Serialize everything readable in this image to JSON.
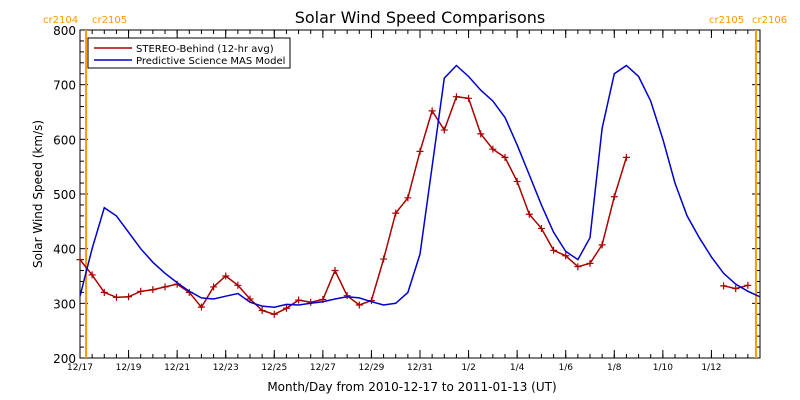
{
  "chart_data": {
    "type": "line",
    "title": "Solar Wind Speed Comparisons",
    "xlabel": "Month/Day from 2010-12-17 to 2011-01-13 (UT)",
    "ylabel": "Solar Wind Speed (km/s)",
    "xlim": [
      "2010-12-17",
      "2011-01-14"
    ],
    "ylim": [
      200,
      800
    ],
    "x_tick_labels": [
      "12/17",
      "12/19",
      "12/21",
      "12/23",
      "12/25",
      "12/27",
      "12/29",
      "12/31",
      "1/2",
      "1/4",
      "1/6",
      "1/8",
      "1/10",
      "1/12"
    ],
    "x_tick_dates": [
      "2010-12-17",
      "2010-12-19",
      "2010-12-21",
      "2010-12-23",
      "2010-12-25",
      "2010-12-27",
      "2010-12-29",
      "2010-12-31",
      "2011-01-02",
      "2011-01-04",
      "2011-01-06",
      "2011-01-08",
      "2011-01-10",
      "2011-01-12"
    ],
    "y_tick_labels": [
      "200",
      "300",
      "400",
      "500",
      "600",
      "700",
      "800"
    ],
    "y_ticks": [
      200,
      300,
      400,
      500,
      600,
      700,
      800
    ],
    "legend_position": "top-left",
    "grid": false,
    "series": [
      {
        "name": "STEREO-Behind (12-hr avg)",
        "color": "#aa0000",
        "marker": "plus",
        "x": [
          "2010-12-17 00:00",
          "2010-12-17 12:00",
          "2010-12-18 00:00",
          "2010-12-18 12:00",
          "2010-12-19 00:00",
          "2010-12-19 12:00",
          "2010-12-20 00:00",
          "2010-12-20 12:00",
          "2010-12-21 00:00",
          "2010-12-21 12:00",
          "2010-12-22 00:00",
          "2010-12-22 12:00",
          "2010-12-23 00:00",
          "2010-12-23 12:00",
          "2010-12-24 00:00",
          "2010-12-24 12:00",
          "2010-12-25 00:00",
          "2010-12-25 12:00",
          "2010-12-26 00:00",
          "2010-12-26 12:00",
          "2010-12-27 00:00",
          "2010-12-27 12:00",
          "2010-12-28 00:00",
          "2010-12-28 12:00",
          "2010-12-29 00:00",
          "2010-12-29 12:00",
          "2010-12-30 00:00",
          "2010-12-30 12:00",
          "2010-12-31 00:00",
          "2010-12-31 12:00",
          "2011-01-01 00:00",
          "2011-01-01 12:00",
          "2011-01-02 00:00",
          "2011-01-02 12:00",
          "2011-01-03 00:00",
          "2011-01-03 12:00",
          "2011-01-04 00:00",
          "2011-01-04 12:00",
          "2011-01-05 00:00",
          "2011-01-05 12:00",
          "2011-01-06 00:00",
          "2011-01-06 12:00",
          "2011-01-07 00:00",
          "2011-01-07 12:00",
          "2011-01-08 00:00",
          "2011-01-08 12:00",
          "2011-01-12 12:00",
          "2011-01-13 00:00",
          "2011-01-13 12:00"
        ],
        "y": [
          380,
          352,
          320,
          311,
          312,
          322,
          325,
          330,
          335,
          320,
          293,
          330,
          350,
          333,
          308,
          287,
          280,
          291,
          306,
          302,
          307,
          360,
          314,
          297,
          305,
          381,
          465,
          493,
          578,
          652,
          617,
          678,
          675,
          610,
          582,
          567,
          523,
          463,
          437,
          397,
          387,
          367,
          373,
          407,
          495,
          567,
          332,
          327,
          333
        ]
      },
      {
        "name": "Predictive Science MAS Model",
        "color": "#0000cc",
        "marker": "none",
        "x": [
          "2010-12-17 00:00",
          "2010-12-17 12:00",
          "2010-12-18 00:00",
          "2010-12-18 12:00",
          "2010-12-19 00:00",
          "2010-12-19 12:00",
          "2010-12-20 00:00",
          "2010-12-20 12:00",
          "2010-12-21 00:00",
          "2010-12-21 12:00",
          "2010-12-22 00:00",
          "2010-12-22 12:00",
          "2010-12-23 00:00",
          "2010-12-23 12:00",
          "2010-12-24 00:00",
          "2010-12-24 12:00",
          "2010-12-25 00:00",
          "2010-12-25 12:00",
          "2010-12-26 00:00",
          "2010-12-26 12:00",
          "2010-12-27 00:00",
          "2010-12-27 12:00",
          "2010-12-28 00:00",
          "2010-12-28 12:00",
          "2010-12-29 00:00",
          "2010-12-29 12:00",
          "2010-12-30 00:00",
          "2010-12-30 12:00",
          "2010-12-31 00:00",
          "2010-12-31 12:00",
          "2011-01-01 00:00",
          "2011-01-01 12:00",
          "2011-01-02 00:00",
          "2011-01-02 12:00",
          "2011-01-03 00:00",
          "2011-01-03 12:00",
          "2011-01-04 00:00",
          "2011-01-04 12:00",
          "2011-01-05 00:00",
          "2011-01-05 12:00",
          "2011-01-06 00:00",
          "2011-01-06 12:00",
          "2011-01-07 00:00",
          "2011-01-07 12:00",
          "2011-01-08 00:00",
          "2011-01-08 12:00",
          "2011-01-09 00:00",
          "2011-01-09 12:00",
          "2011-01-10 00:00",
          "2011-01-10 12:00",
          "2011-01-11 00:00",
          "2011-01-11 12:00",
          "2011-01-12 00:00",
          "2011-01-12 12:00",
          "2011-01-13 00:00",
          "2011-01-13 12:00",
          "2011-01-14 00:00"
        ],
        "y": [
          313,
          400,
          475,
          460,
          430,
          400,
          375,
          355,
          338,
          322,
          310,
          308,
          313,
          318,
          302,
          295,
          293,
          298,
          297,
          300,
          303,
          308,
          312,
          310,
          303,
          297,
          300,
          320,
          390,
          550,
          712,
          735,
          715,
          690,
          670,
          640,
          590,
          535,
          480,
          430,
          395,
          380,
          420,
          620,
          720,
          735,
          715,
          670,
          600,
          520,
          460,
          420,
          385,
          355,
          335,
          322,
          312
        ]
      }
    ],
    "carrington_rotations": [
      {
        "date": "2010-12-17 06:00",
        "left_label": "cr2104",
        "right_label": "cr2105",
        "color": "#ff9900"
      },
      {
        "date": "2011-01-13 20:00",
        "left_label": "cr2105",
        "right_label": "cr2106",
        "color": "#ff9900"
      }
    ]
  }
}
